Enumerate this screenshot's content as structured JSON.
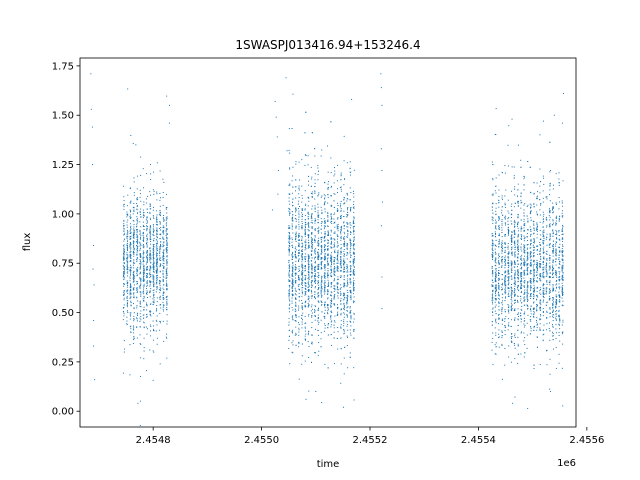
{
  "chart_data": {
    "type": "scatter",
    "title": "1SWASPJ013416.94+153246.4",
    "xlabel": "time",
    "ylabel": "flux",
    "x_offset_label": "1e6",
    "xlim": [
      2454665,
      2455580
    ],
    "ylim": [
      -0.08,
      1.79
    ],
    "x_ticks": [
      {
        "value": 2454800,
        "label": "2.4548"
      },
      {
        "value": 2455000,
        "label": "2.4550"
      },
      {
        "value": 2455200,
        "label": "2.4552"
      },
      {
        "value": 2455400,
        "label": "2.4554"
      },
      {
        "value": 2455600,
        "label": "2.4556"
      }
    ],
    "y_ticks": [
      {
        "value": 0.0,
        "label": "0.00"
      },
      {
        "value": 0.25,
        "label": "0.25"
      },
      {
        "value": 0.5,
        "label": "0.50"
      },
      {
        "value": 0.75,
        "label": "0.75"
      },
      {
        "value": 1.0,
        "label": "1.00"
      },
      {
        "value": 1.25,
        "label": "1.25"
      },
      {
        "value": 1.5,
        "label": "1.50"
      },
      {
        "value": 1.75,
        "label": "1.75"
      }
    ],
    "grid": false,
    "marker_color": "#1f77b4",
    "observing_seasons": [
      {
        "x_start": 2454745,
        "x_end": 2454830,
        "y_center": 0.75,
        "y_spread": 0.17,
        "points": 1500
      },
      {
        "x_start": 2455050,
        "x_end": 2455175,
        "y_center": 0.75,
        "y_spread": 0.2,
        "points": 2500
      },
      {
        "x_start": 2455425,
        "x_end": 2455560,
        "y_center": 0.72,
        "y_spread": 0.19,
        "points": 2500
      }
    ],
    "sparse_points": [
      {
        "x": 2454685,
        "y": 1.71
      },
      {
        "x": 2454686,
        "y": 1.53
      },
      {
        "x": 2454688,
        "y": 1.44
      },
      {
        "x": 2454688,
        "y": 1.25
      },
      {
        "x": 2454690,
        "y": 0.84
      },
      {
        "x": 2454689,
        "y": 0.72
      },
      {
        "x": 2454691,
        "y": 0.64
      },
      {
        "x": 2454690,
        "y": 0.46
      },
      {
        "x": 2454690,
        "y": 0.33
      },
      {
        "x": 2454692,
        "y": 0.16
      },
      {
        "x": 2455025,
        "y": 1.57
      },
      {
        "x": 2455027,
        "y": 1.49
      },
      {
        "x": 2455029,
        "y": 1.39
      },
      {
        "x": 2455031,
        "y": 1.22
      },
      {
        "x": 2455030,
        "y": 1.1
      },
      {
        "x": 2455020,
        "y": 1.02
      },
      {
        "x": 2455045,
        "y": 1.69
      },
      {
        "x": 2455047,
        "y": 1.32
      },
      {
        "x": 2455220,
        "y": 1.71
      },
      {
        "x": 2455221,
        "y": 1.64
      },
      {
        "x": 2455222,
        "y": 1.55
      },
      {
        "x": 2455221,
        "y": 1.33
      },
      {
        "x": 2455222,
        "y": 1.22
      },
      {
        "x": 2455223,
        "y": 1.06
      },
      {
        "x": 2455221,
        "y": 0.94
      },
      {
        "x": 2455222,
        "y": 0.68
      },
      {
        "x": 2455222,
        "y": 0.52
      },
      {
        "x": 2455166,
        "y": 1.58
      },
      {
        "x": 2455151,
        "y": 0.02
      },
      {
        "x": 2455462,
        "y": 1.48
      },
      {
        "x": 2455540,
        "y": 1.5
      },
      {
        "x": 2455557,
        "y": 1.61
      },
      {
        "x": 2455555,
        "y": 1.46
      },
      {
        "x": 2455520,
        "y": 1.47
      },
      {
        "x": 2455484,
        "y": 1.02
      },
      {
        "x": 2455533,
        "y": 1.22
      },
      {
        "x": 2454795,
        "y": 1.25
      },
      {
        "x": 2454768,
        "y": 1.35
      },
      {
        "x": 2454830,
        "y": 1.55
      },
      {
        "x": 2454830,
        "y": 1.46
      },
      {
        "x": 2454772,
        "y": 0.04
      },
      {
        "x": 2455463,
        "y": 0.04
      },
      {
        "x": 2455082,
        "y": 0.06
      },
      {
        "x": 2455100,
        "y": 0.1
      },
      {
        "x": 2455533,
        "y": 0.1
      }
    ]
  }
}
